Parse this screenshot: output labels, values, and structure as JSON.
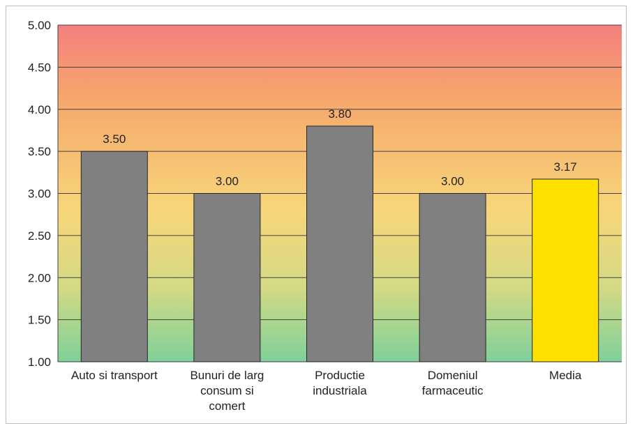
{
  "chart_data": {
    "type": "bar",
    "title": "",
    "xlabel": "",
    "ylabel": "",
    "ylim": [
      1.0,
      5.0
    ],
    "y_ticks": [
      "1.00",
      "1.50",
      "2.00",
      "2.50",
      "3.00",
      "3.50",
      "4.00",
      "4.50",
      "5.00"
    ],
    "grid": true,
    "categories": [
      [
        "Auto si transport"
      ],
      [
        "Bunuri de larg",
        "consum si",
        "comert"
      ],
      [
        "Productie",
        "industriala"
      ],
      [
        "Domeniul",
        "farmaceutic"
      ],
      [
        "Media"
      ]
    ],
    "values": [
      3.5,
      3.0,
      3.8,
      3.0,
      3.17
    ],
    "data_labels": [
      "3.50",
      "3.00",
      "3.80",
      "3.00",
      "3.17"
    ],
    "bar_colors": [
      "#808080",
      "#808080",
      "#808080",
      "#808080",
      "#ffe000"
    ],
    "background_gradient": [
      "#f47f7f",
      "#f6a86c",
      "#f7d67a",
      "#d3da85",
      "#7fd09a"
    ]
  }
}
